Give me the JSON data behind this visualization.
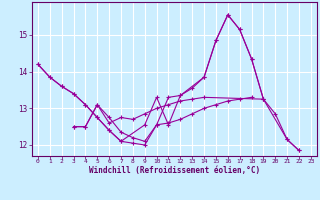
{
  "xlabel": "Windchill (Refroidissement éolien,°C)",
  "background_color": "#cceeff",
  "grid_color": "#ffffff",
  "line_color": "#990099",
  "xlim": [
    -0.5,
    23.5
  ],
  "ylim": [
    11.7,
    15.9
  ],
  "yticks": [
    12,
    13,
    14,
    15
  ],
  "xticks": [
    0,
    1,
    2,
    3,
    4,
    5,
    6,
    7,
    8,
    9,
    10,
    11,
    12,
    13,
    14,
    15,
    16,
    17,
    18,
    19,
    20,
    21,
    22,
    23
  ],
  "series_x": [
    [
      0,
      1,
      2,
      3,
      4,
      5,
      6,
      7,
      8,
      9,
      10,
      11,
      12,
      13,
      14,
      15,
      16,
      17,
      18,
      19,
      20,
      21,
      22
    ],
    [
      0,
      1,
      2,
      3,
      4,
      5,
      6,
      7,
      9,
      10,
      11,
      12,
      14,
      15,
      16,
      17,
      18,
      19
    ],
    [
      3,
      4,
      5,
      6,
      7,
      8,
      9,
      10,
      11,
      12,
      13,
      14,
      15,
      16,
      17,
      18
    ],
    [
      3,
      4,
      5,
      6,
      7,
      8,
      9,
      10,
      11,
      12,
      13,
      14,
      19,
      21,
      22
    ]
  ],
  "series_y": [
    [
      14.2,
      13.85,
      13.6,
      13.4,
      13.1,
      12.75,
      12.4,
      12.1,
      12.05,
      12.0,
      12.55,
      13.3,
      13.35,
      13.55,
      13.85,
      14.85,
      15.55,
      15.15,
      14.35,
      13.25,
      12.85,
      12.15,
      11.85
    ],
    [
      14.2,
      13.85,
      13.6,
      13.4,
      13.1,
      12.75,
      12.4,
      12.1,
      12.55,
      13.3,
      12.55,
      13.35,
      13.85,
      14.85,
      15.55,
      15.15,
      14.35,
      13.25
    ],
    [
      12.5,
      12.5,
      13.1,
      12.75,
      12.35,
      12.2,
      12.1,
      12.55,
      12.6,
      12.7,
      12.85,
      13.0,
      13.1,
      13.2,
      13.25,
      13.3
    ],
    [
      12.5,
      12.5,
      13.1,
      12.6,
      12.75,
      12.7,
      12.85,
      13.0,
      13.1,
      13.2,
      13.25,
      13.3,
      13.25,
      12.15,
      11.85
    ]
  ]
}
